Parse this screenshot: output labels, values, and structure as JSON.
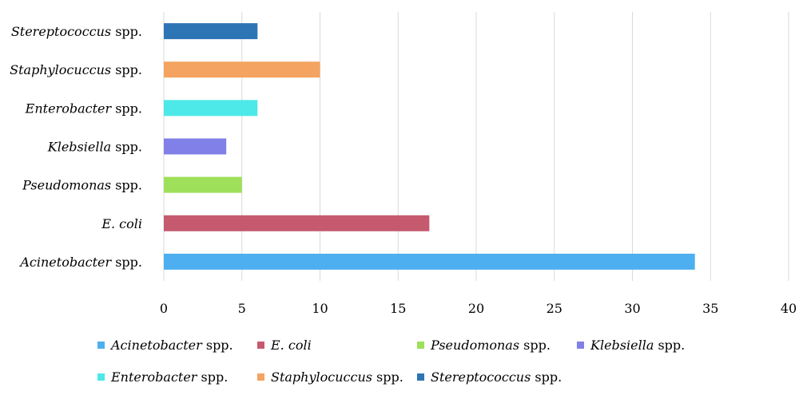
{
  "chart_data": {
    "type": "bar",
    "orientation": "horizontal",
    "title": "",
    "xlabel": "",
    "ylabel": "",
    "xlim": [
      0,
      40
    ],
    "xticks": [
      "0",
      "5",
      "10",
      "15",
      "20",
      "25",
      "30",
      "35",
      "40"
    ],
    "grid": true,
    "legend_position": "bottom",
    "categories": [
      {
        "italic": "Stereptococcus",
        "plain": " spp.",
        "value": 6,
        "color": "#2e75b6"
      },
      {
        "italic": "Staphylocuccus",
        "plain": " spp.",
        "value": 10,
        "color": "#f4a460"
      },
      {
        "italic": "Enterobacter",
        "plain": " spp.",
        "value": 6,
        "color": "#4de8e8"
      },
      {
        "italic": "Klebsiella",
        "plain": " spp.",
        "value": 4,
        "color": "#8080e8"
      },
      {
        "italic": "Pseudomonas",
        "plain": " spp.",
        "value": 5,
        "color": "#9ee05a"
      },
      {
        "italic": "E. coli",
        "plain": "",
        "value": 17,
        "color": "#c55a6e"
      },
      {
        "italic": "Acinetobacter",
        "plain": " spp.",
        "value": 34,
        "color": "#4daff0"
      }
    ],
    "legend": [
      {
        "italic": "Acinetobacter",
        "plain": " spp.",
        "color": "#4daff0"
      },
      {
        "italic": "E. coli",
        "plain": "",
        "color": "#c55a6e"
      },
      {
        "italic": "Pseudomonas",
        "plain": " spp.",
        "color": "#9ee05a"
      },
      {
        "italic": "Klebsiella",
        "plain": " spp.",
        "color": "#8080e8"
      },
      {
        "italic": "Enterobacter",
        "plain": " spp.",
        "color": "#4de8e8"
      },
      {
        "italic": "Staphylocuccus",
        "plain": " spp.",
        "color": "#f4a460"
      },
      {
        "italic": "Stereptococcus",
        "plain": " spp.",
        "color": "#2e75b6"
      }
    ]
  }
}
